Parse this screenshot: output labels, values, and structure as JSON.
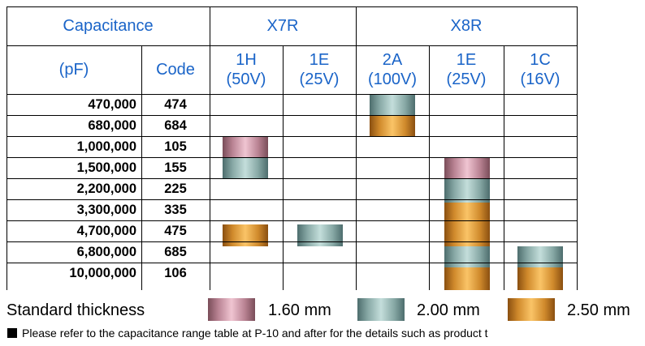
{
  "header": {
    "capacitance": "Capacitance",
    "pf": "(pF)",
    "code": "Code",
    "x7r": "X7R",
    "x8r": "X8R",
    "voltages": [
      {
        "code": "1H",
        "volt": "(50V)"
      },
      {
        "code": "1E",
        "volt": "(25V)"
      },
      {
        "code": "2A",
        "volt": "(100V)"
      },
      {
        "code": "1E",
        "volt": "(25V)"
      },
      {
        "code": "1C",
        "volt": "(16V)"
      }
    ]
  },
  "rows": [
    {
      "capacitance": "470,000",
      "code": "474"
    },
    {
      "capacitance": "680,000",
      "code": "684"
    },
    {
      "capacitance": "1,000,000",
      "code": "105"
    },
    {
      "capacitance": "1,500,000",
      "code": "155"
    },
    {
      "capacitance": "2,200,000",
      "code": "225"
    },
    {
      "capacitance": "3,300,000",
      "code": "335"
    },
    {
      "capacitance": "4,700,000",
      "code": "475"
    },
    {
      "capacitance": "6,800,000",
      "code": "685"
    },
    {
      "capacitance": "10,000,000",
      "code": "106"
    }
  ],
  "thickness_map": {
    "columns": [
      "X7R 1H (50V)",
      "X7R 1E (25V)",
      "X8R 2A (100V)",
      "X8R 1E (25V)",
      "X8R 1C (16V)"
    ],
    "cells": [
      [
        "",
        "",
        "2.00 mm",
        "",
        ""
      ],
      [
        "",
        "",
        "2.50 mm",
        "",
        ""
      ],
      [
        "1.60 mm",
        "",
        "",
        "",
        ""
      ],
      [
        "2.00 mm",
        "",
        "",
        "1.60 mm",
        ""
      ],
      [
        "",
        "",
        "",
        "2.00 mm",
        ""
      ],
      [
        "",
        "",
        "",
        "2.50 mm",
        ""
      ],
      [
        "2.50 mm",
        "2.00 mm",
        "",
        "2.50 mm",
        ""
      ],
      [
        "",
        "",
        "",
        "2.00 mm",
        "2.00 mm"
      ],
      [
        "",
        "",
        "",
        "2.50 mm",
        "2.50 mm"
      ]
    ]
  },
  "legend": {
    "label": "Standard thickness",
    "items": [
      {
        "value": "1.60 mm",
        "color": "#d9a3b3"
      },
      {
        "value": "2.00 mm",
        "color": "#a9c7c4"
      },
      {
        "value": "2.50 mm",
        "color": "#e9a649"
      }
    ]
  },
  "note": "Please refer to the capacitance range table at P-10 and after for the details such as product t"
}
